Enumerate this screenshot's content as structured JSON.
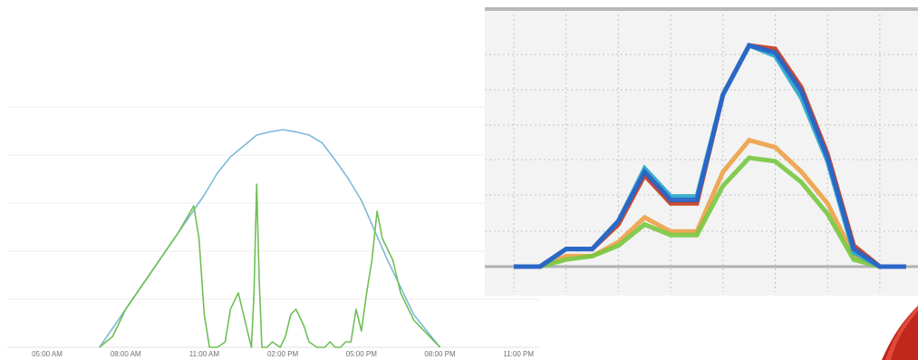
{
  "chart_data": [
    {
      "type": "line",
      "x_ticks": [
        "05:00 AM",
        "08:00 AM",
        "11:00 AM",
        "02:00 PM",
        "05:00 PM",
        "08:00 PM",
        "11:00 PM"
      ],
      "x_hours": [
        5,
        8,
        11,
        14,
        17,
        20,
        23
      ],
      "grid": true,
      "series": [
        {
          "color": "#7fb8d8",
          "x": [
            7,
            8,
            9,
            10,
            11,
            11.5,
            12,
            12.5,
            13,
            13.5,
            14,
            14.5,
            15,
            15.5,
            16,
            16.5,
            17,
            18,
            19,
            20
          ],
          "y": [
            0,
            0.35,
            0.7,
            1.05,
            1.4,
            1.6,
            1.75,
            1.85,
            1.95,
            1.98,
            2.0,
            1.98,
            1.95,
            1.88,
            1.72,
            1.55,
            1.35,
            0.8,
            0.3,
            0
          ]
        },
        {
          "color": "#6fbf55",
          "x": [
            7,
            7.5,
            8,
            9,
            10,
            10.6,
            10.8,
            11.0,
            11.2,
            11.5,
            11.8,
            12.0,
            12.3,
            12.6,
            12.8,
            12.9,
            13.0,
            13.1,
            13.2,
            13.4,
            13.6,
            13.9,
            14.1,
            14.3,
            14.5,
            14.8,
            15.0,
            15.3,
            15.6,
            15.8,
            16.0,
            16.2,
            16.4,
            16.6,
            16.7,
            16.8,
            17.0,
            17.2,
            17.4,
            17.6,
            17.8,
            18.2,
            18.5,
            19,
            20
          ],
          "y": [
            0,
            0.1,
            0.35,
            0.7,
            1.05,
            1.3,
            1.0,
            0.3,
            0,
            0,
            0.05,
            0.35,
            0.5,
            0.2,
            0,
            0.5,
            1.5,
            0.6,
            0,
            0,
            0.05,
            0,
            0.1,
            0.3,
            0.35,
            0.2,
            0.05,
            0,
            0,
            0.05,
            0,
            0,
            0.05,
            0.05,
            0.2,
            0.35,
            0.15,
            0.5,
            0.8,
            1.25,
            1.0,
            0.8,
            0.5,
            0.25,
            0
          ]
        }
      ]
    },
    {
      "type": "line",
      "grid": true,
      "x": [
        0,
        0.5,
        1,
        1.5,
        2,
        2.5,
        3,
        3.5,
        4,
        4.5,
        5,
        5.5,
        6,
        6.5,
        7,
        7.5
      ],
      "series": [
        {
          "color": "#c43c1e",
          "values": [
            0,
            0,
            0.5,
            0.5,
            1.2,
            2.6,
            1.8,
            1.8,
            4.9,
            6.3,
            6.2,
            5.1,
            3.2,
            0.6,
            0,
            0
          ]
        },
        {
          "color": "#2aa9c9",
          "values": [
            0,
            0,
            0.5,
            0.5,
            1.3,
            2.8,
            2.0,
            2.0,
            4.9,
            6.3,
            6.0,
            4.8,
            3.0,
            0.4,
            0,
            0
          ]
        },
        {
          "color": "#2962c8",
          "values": [
            0,
            0,
            0.5,
            0.5,
            1.3,
            2.7,
            1.9,
            1.9,
            4.9,
            6.3,
            6.1,
            5.0,
            3.1,
            0.5,
            0,
            0
          ]
        },
        {
          "color": "#eda34a",
          "values": [
            0,
            0,
            0.3,
            0.3,
            0.7,
            1.4,
            1.0,
            1.0,
            2.7,
            3.6,
            3.4,
            2.7,
            1.8,
            0.3,
            0,
            0
          ]
        },
        {
          "color": "#7ac943",
          "values": [
            0,
            0,
            0.2,
            0.3,
            0.6,
            1.2,
            0.9,
            0.9,
            2.3,
            3.1,
            3.0,
            2.4,
            1.5,
            0.2,
            0,
            0
          ]
        }
      ],
      "ylim": [
        0,
        7
      ]
    }
  ]
}
